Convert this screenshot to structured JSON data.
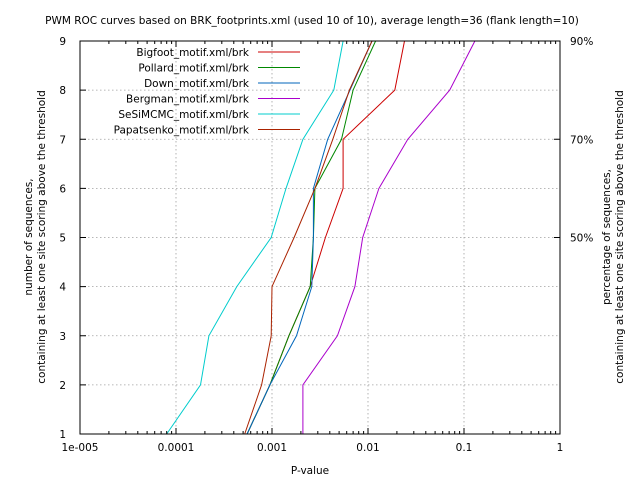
{
  "chart_data": {
    "type": "line",
    "title": "PWM ROC curves based on BRK_footprints.xml (used 10 of 10), average length=36 (flank length=10)",
    "xlabel": "P-value",
    "ylabel_line1": "number of sequences,",
    "ylabel_line2": "containing at least one site scoring above the threshold",
    "y2label_line1": "percentage of sequences,",
    "y2label_line2": "containing at least one site scoring above the threshold",
    "x_scale": "log",
    "xlim": [
      1e-05,
      1
    ],
    "ylim": [
      1,
      9
    ],
    "grid": true,
    "legend_position": "top-left",
    "x_ticks": [
      {
        "value": 1e-05,
        "label": "1e-005"
      },
      {
        "value": 0.0001,
        "label": "0.0001"
      },
      {
        "value": 0.001,
        "label": "0.001"
      },
      {
        "value": 0.01,
        "label": "0.01"
      },
      {
        "value": 0.1,
        "label": "0.1"
      },
      {
        "value": 1,
        "label": "1"
      }
    ],
    "y_ticks": [
      {
        "value": 1,
        "label": "1"
      },
      {
        "value": 2,
        "label": "2"
      },
      {
        "value": 3,
        "label": "3"
      },
      {
        "value": 4,
        "label": "4"
      },
      {
        "value": 5,
        "label": "5"
      },
      {
        "value": 6,
        "label": "6"
      },
      {
        "value": 7,
        "label": "7"
      },
      {
        "value": 8,
        "label": "8"
      },
      {
        "value": 9,
        "label": "9"
      }
    ],
    "y2_ticks": [
      {
        "value": 5,
        "label": "50%"
      },
      {
        "value": 7,
        "label": "70%"
      },
      {
        "value": 9,
        "label": "90%"
      }
    ],
    "series": [
      {
        "name": "Bigfoot_motif.xml/brk",
        "color": "#cc0000",
        "points": [
          [
            0.00055,
            1
          ],
          [
            0.00095,
            2
          ],
          [
            0.0015,
            3
          ],
          [
            0.0025,
            4
          ],
          [
            0.0036,
            5
          ],
          [
            0.0055,
            6
          ],
          [
            0.0055,
            7
          ],
          [
            0.019,
            8
          ],
          [
            0.024,
            9
          ]
        ]
      },
      {
        "name": "Pollard_motif.xml/brk",
        "color": "#008800",
        "points": [
          [
            0.00055,
            1
          ],
          [
            0.00095,
            2
          ],
          [
            0.0015,
            3
          ],
          [
            0.0025,
            4
          ],
          [
            0.0027,
            5
          ],
          [
            0.0028,
            6
          ],
          [
            0.0053,
            7
          ],
          [
            0.007,
            8
          ],
          [
            0.012,
            9
          ]
        ]
      },
      {
        "name": "Down_motif.xml/brk",
        "color": "#0066bb",
        "points": [
          [
            0.00055,
            1
          ],
          [
            0.00095,
            2
          ],
          [
            0.0018,
            3
          ],
          [
            0.0026,
            4
          ],
          [
            0.0027,
            5
          ],
          [
            0.0027,
            6
          ],
          [
            0.0038,
            7
          ],
          [
            0.0065,
            8
          ],
          [
            0.011,
            9
          ]
        ]
      },
      {
        "name": "Bergman_motif.xml/brk",
        "color": "#aa00cc",
        "points": [
          [
            0.0021,
            1
          ],
          [
            0.0021,
            2
          ],
          [
            0.0048,
            3
          ],
          [
            0.0073,
            4
          ],
          [
            0.0088,
            5
          ],
          [
            0.013,
            6
          ],
          [
            0.026,
            7
          ],
          [
            0.071,
            8
          ],
          [
            0.13,
            9
          ]
        ]
      },
      {
        "name": "SeSiMCMC_motif.xml/brk",
        "color": "#00cccc",
        "points": [
          [
            8e-05,
            1
          ],
          [
            0.00018,
            2
          ],
          [
            0.00022,
            3
          ],
          [
            0.00043,
            4
          ],
          [
            0.00098,
            5
          ],
          [
            0.0014,
            6
          ],
          [
            0.0021,
            7
          ],
          [
            0.0044,
            8
          ],
          [
            0.0055,
            9
          ]
        ]
      },
      {
        "name": "Papatsenko_motif.xml/brk",
        "color": "#aa2200",
        "points": [
          [
            0.00052,
            1
          ],
          [
            0.00078,
            2
          ],
          [
            0.00098,
            3
          ],
          [
            0.001,
            4
          ],
          [
            0.0017,
            5
          ],
          [
            0.0028,
            6
          ],
          [
            0.0043,
            7
          ],
          [
            0.0064,
            8
          ],
          [
            0.011,
            9
          ]
        ]
      }
    ]
  }
}
